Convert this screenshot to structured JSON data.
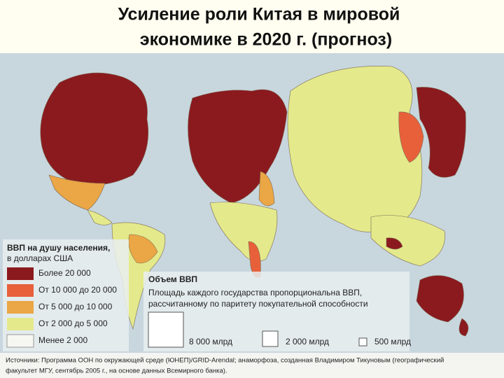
{
  "header": {
    "title": [
      "Усиление роли Китая в мировой",
      "экономике в 2020 г. (прогноз)"
    ]
  },
  "legend": {
    "title": [
      "ВВП на душу населения,",
      "в долларах США"
    ],
    "items": [
      "Более 20 000",
      "От 10 000 до 20 000",
      "От 5 000 до 10 000",
      "От 2 000 до 5 000",
      "Менее 2 000"
    ]
  },
  "volume": {
    "title": "Объем ВВП",
    "description": [
      "Площадь каждого государства пропорциональна ВВП,",
      "рассчитанному по паритету покупательной способности"
    ],
    "sizes": [
      "8 000 млрд",
      "2 000 млрд",
      "500 млрд"
    ]
  },
  "source": [
    "Источники: Программа ООН по окружающей среде (ЮНЕП)/GRID-Arendal; анаморфоза, созданная Владимиром Тикуновым (географический",
    "факультет МГУ, сентябрь 2005 г., на основе данных Всемирного банка)."
  ]
}
